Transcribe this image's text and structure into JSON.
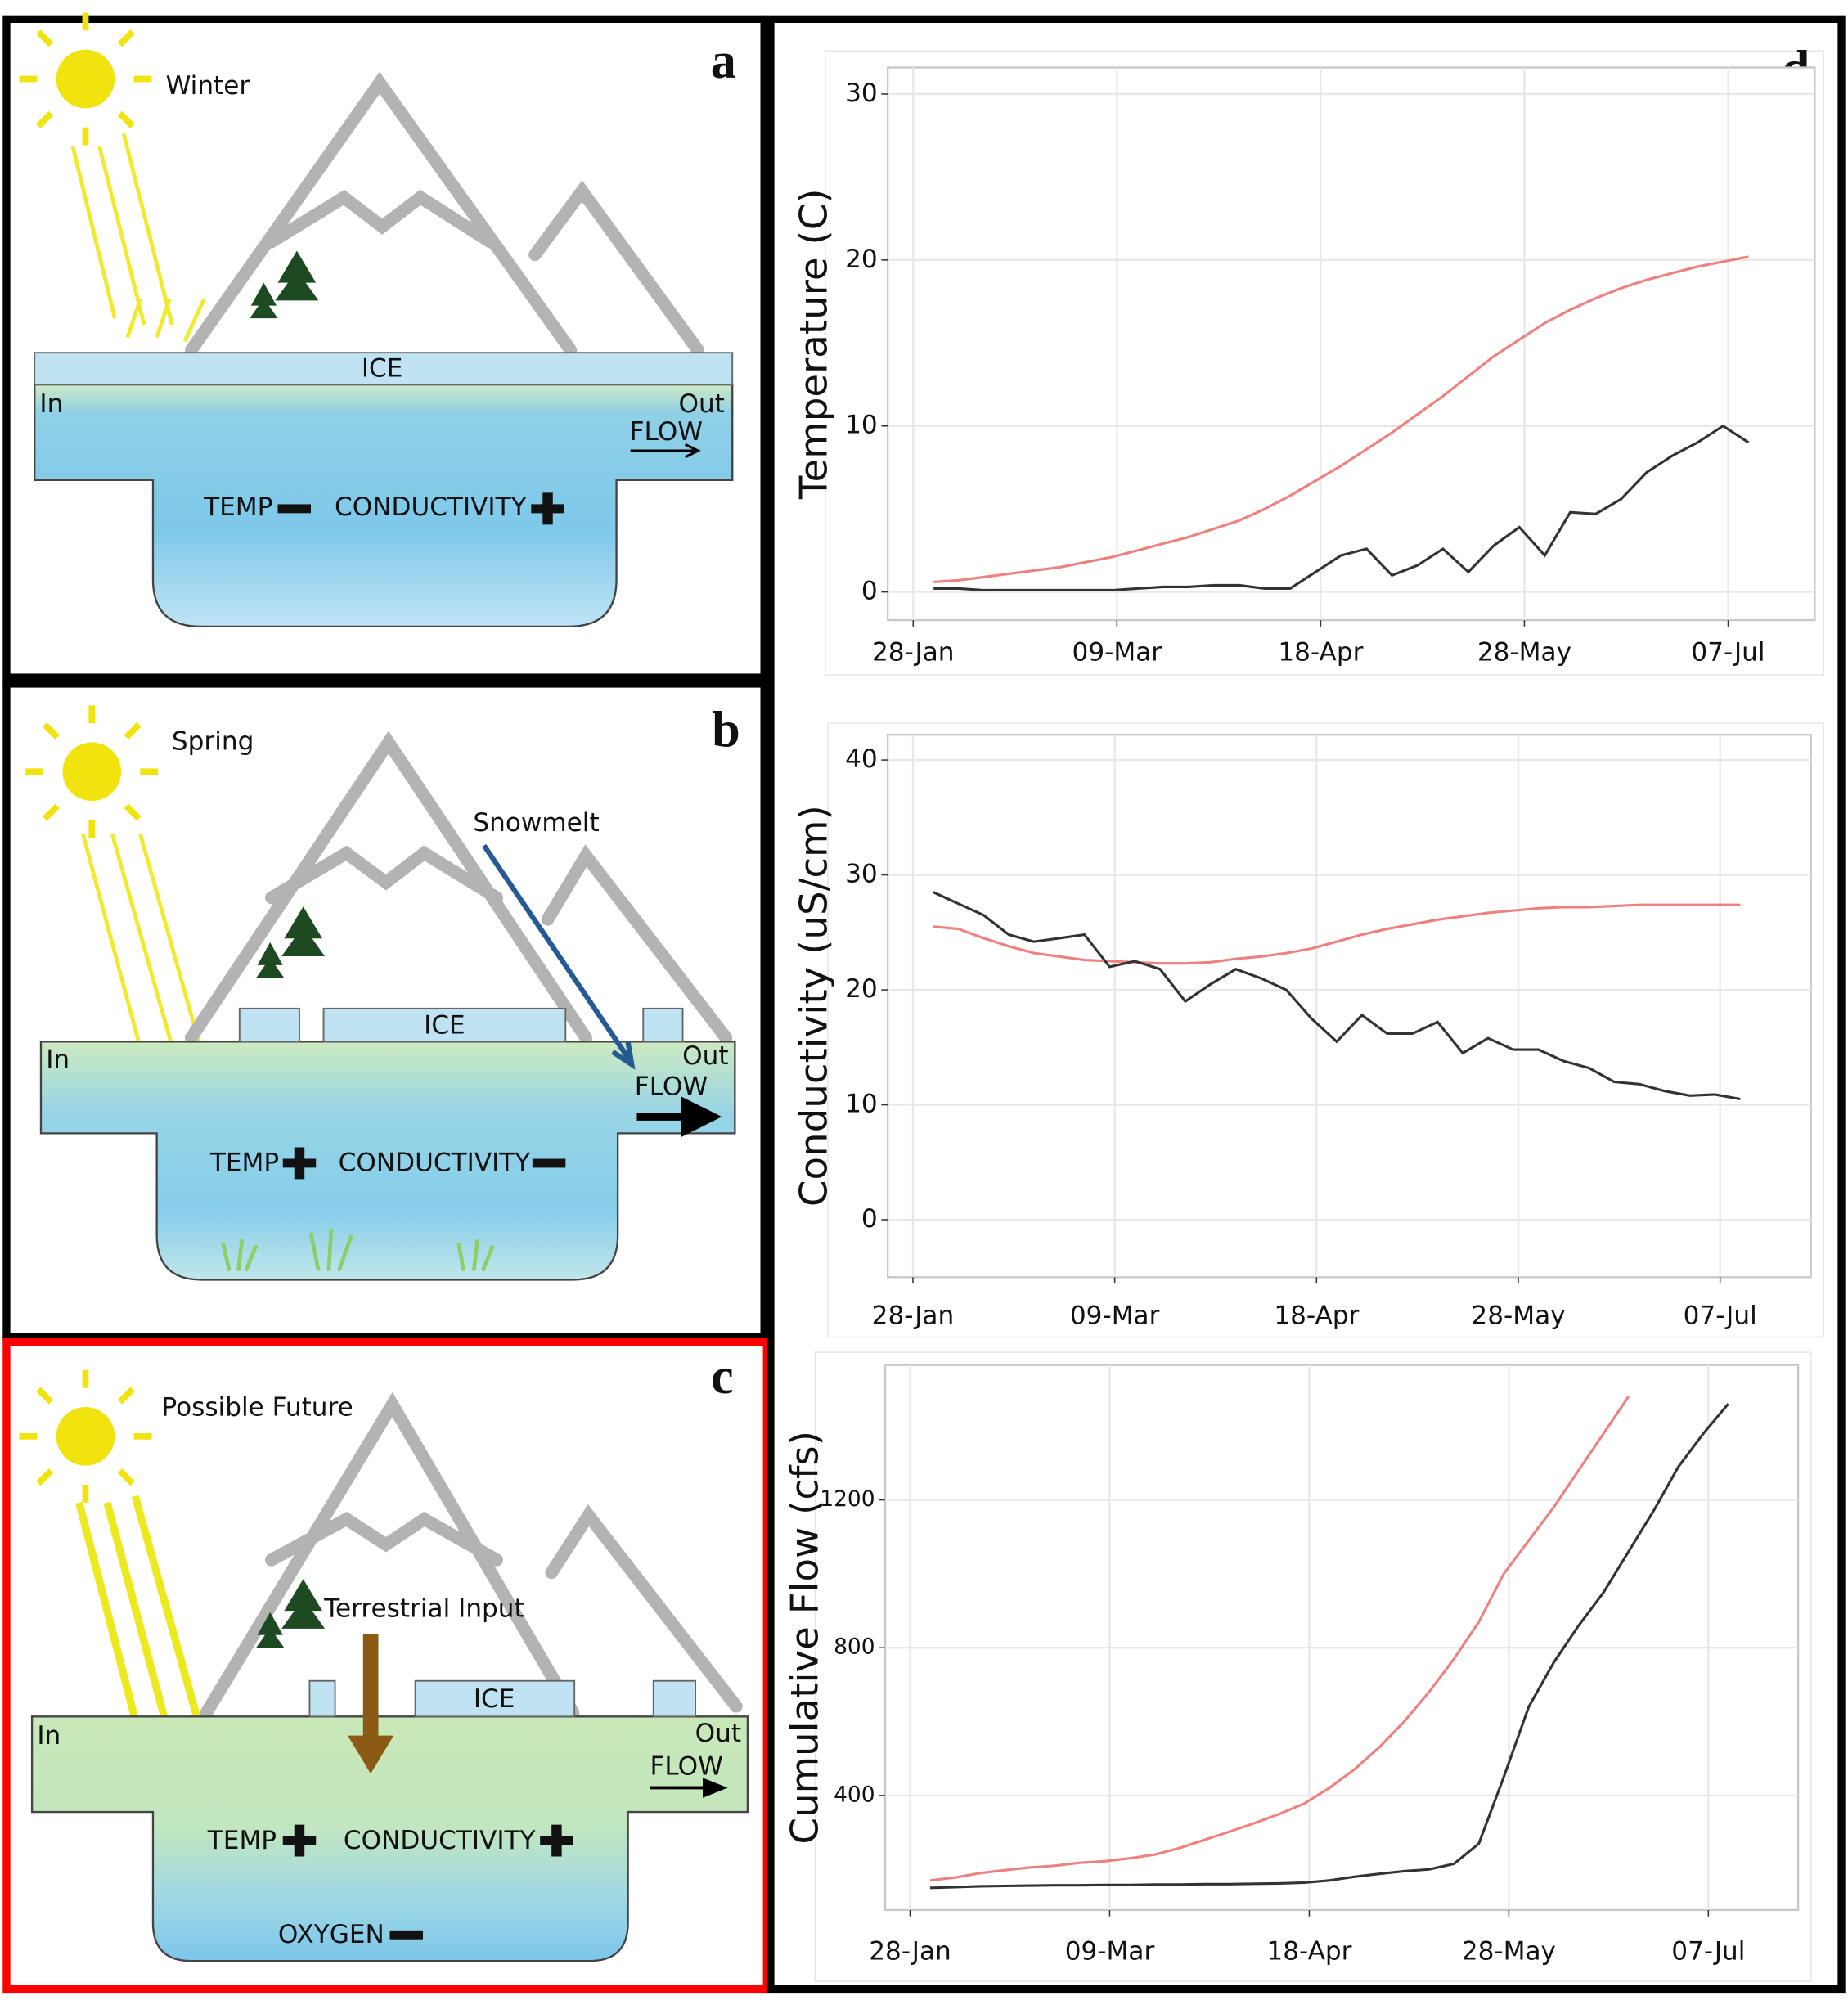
{
  "panels": [
    {
      "label": "a",
      "season": "Winter",
      "ice": "ICE",
      "in": "In",
      "out": "Out",
      "flow": "FLOW",
      "temp": "TEMP",
      "conductivity": "CONDUCTIVITY"
    },
    {
      "label": "b",
      "season": "Spring",
      "snowmelt": "Snowmelt",
      "ice": "ICE",
      "in": "In",
      "out": "Out",
      "flow": "FLOW",
      "temp": "TEMP",
      "conductivity": "CONDUCTIVITY"
    },
    {
      "label": "c",
      "season": "Possible Future",
      "input": "Terrestrial Input",
      "ice": "ICE",
      "in": "In",
      "out": "Out",
      "flow": "FLOW",
      "temp": "TEMP",
      "conductivity": "CONDUCTIVITY",
      "oxygen": "OXYGEN"
    }
  ],
  "chart_panel_label": "d",
  "chart_data": [
    {
      "type": "line",
      "y_label": "Temperature (C)",
      "x": [
        "01-Feb",
        "06-Feb",
        "11-Feb",
        "16-Feb",
        "21-Feb",
        "26-Feb",
        "03-Mar",
        "08-Mar",
        "13-Mar",
        "18-Mar",
        "23-Mar",
        "28-Mar",
        "02-Apr",
        "07-Apr",
        "12-Apr",
        "17-Apr",
        "22-Apr",
        "27-Apr",
        "02-May",
        "07-May",
        "12-May",
        "17-May",
        "22-May",
        "27-May",
        "01-Jun",
        "06-Jun",
        "11-Jun",
        "16-Jun",
        "21-Jun",
        "26-Jun",
        "01-Jul",
        "06-Jul",
        "11-Jul"
      ],
      "series": [
        {
          "color": "#ef8080",
          "values": [
            0.6,
            0.7,
            0.9,
            1.1,
            1.3,
            1.5,
            1.8,
            2.1,
            2.5,
            2.9,
            3.3,
            3.8,
            4.3,
            5.0,
            5.8,
            6.7,
            7.6,
            8.6,
            9.6,
            10.7,
            11.8,
            13.0,
            14.2,
            15.2,
            16.2,
            17.0,
            17.7,
            18.3,
            18.8,
            19.2,
            19.6,
            19.9,
            20.2
          ]
        },
        {
          "color": "#333333",
          "values": [
            0.2,
            0.2,
            0.1,
            0.1,
            0.1,
            0.1,
            0.1,
            0.1,
            0.2,
            0.3,
            0.3,
            0.4,
            0.4,
            0.2,
            0.2,
            1.2,
            2.2,
            2.6,
            1.0,
            1.6,
            2.6,
            1.2,
            2.8,
            3.9,
            2.2,
            4.8,
            4.7,
            5.6,
            7.2,
            8.2,
            9.0,
            10.0,
            9.0
          ]
        }
      ],
      "xlim": [
        "23-Jan",
        "24-Jul"
      ],
      "xticks": [
        "28-Jan",
        "09-Mar",
        "18-Apr",
        "28-May",
        "07-Jul"
      ],
      "ylim": [
        -1.7,
        31.6
      ],
      "yticks": [
        0,
        10,
        20,
        30
      ],
      "grid": true
    },
    {
      "type": "line",
      "y_label": "Conductivity (uS/cm)",
      "x": [
        "01-Feb",
        "06-Feb",
        "11-Feb",
        "16-Feb",
        "21-Feb",
        "26-Feb",
        "03-Mar",
        "08-Mar",
        "13-Mar",
        "18-Mar",
        "23-Mar",
        "28-Mar",
        "02-Apr",
        "07-Apr",
        "12-Apr",
        "17-Apr",
        "22-Apr",
        "27-Apr",
        "02-May",
        "07-May",
        "12-May",
        "17-May",
        "22-May",
        "27-May",
        "01-Jun",
        "06-Jun",
        "11-Jun",
        "16-Jun",
        "21-Jun",
        "26-Jun",
        "01-Jul",
        "06-Jul",
        "11-Jul"
      ],
      "series": [
        {
          "color": "#ef8080",
          "values": [
            25.5,
            25.3,
            24.5,
            23.8,
            23.2,
            22.9,
            22.6,
            22.5,
            22.4,
            22.3,
            22.3,
            22.4,
            22.7,
            22.9,
            23.2,
            23.6,
            24.2,
            24.8,
            25.3,
            25.7,
            26.1,
            26.4,
            26.7,
            26.9,
            27.1,
            27.2,
            27.2,
            27.3,
            27.4,
            27.4,
            27.4,
            27.4,
            27.4
          ]
        },
        {
          "color": "#333333",
          "values": [
            28.5,
            27.5,
            26.5,
            24.8,
            24.2,
            24.5,
            24.8,
            22.0,
            22.5,
            21.8,
            19.0,
            20.5,
            21.8,
            21.0,
            20.0,
            17.5,
            15.5,
            17.8,
            16.2,
            16.2,
            17.2,
            14.5,
            15.8,
            14.8,
            14.8,
            13.8,
            13.2,
            12.0,
            11.8,
            11.2,
            10.8,
            10.9,
            10.5
          ]
        }
      ],
      "xlim": [
        "23-Jan",
        "25-Jul"
      ],
      "xticks": [
        "28-Jan",
        "09-Mar",
        "18-Apr",
        "28-May",
        "07-Jul"
      ],
      "ylim": [
        -5,
        42.2
      ],
      "yticks": [
        0,
        10,
        20,
        30,
        40
      ],
      "grid": true
    },
    {
      "type": "line",
      "y_label": "Cumulative Flow (cfs)",
      "x": [
        "01-Feb",
        "06-Feb",
        "11-Feb",
        "16-Feb",
        "21-Feb",
        "26-Feb",
        "03-Mar",
        "08-Mar",
        "13-Mar",
        "18-Mar",
        "23-Mar",
        "28-Mar",
        "02-Apr",
        "07-Apr",
        "12-Apr",
        "17-Apr",
        "22-Apr",
        "27-Apr",
        "02-May",
        "07-May",
        "12-May",
        "17-May",
        "22-May",
        "27-May",
        "01-Jun",
        "06-Jun",
        "11-Jun",
        "16-Jun",
        "21-Jun",
        "26-Jun",
        "01-Jul",
        "06-Jul",
        "11-Jul"
      ],
      "series": [
        {
          "color": "#ef8080",
          "values": [
            170,
            178,
            190,
            198,
            205,
            210,
            218,
            222,
            230,
            240,
            258,
            280,
            302,
            325,
            350,
            378,
            420,
            470,
            530,
            600,
            680,
            770,
            870,
            1000,
            1090,
            1180,
            1280,
            1380,
            1480,
            null,
            null,
            null,
            null
          ]
        },
        {
          "color": "#333333",
          "values": [
            150,
            152,
            154,
            155,
            156,
            157,
            157,
            158,
            158,
            159,
            159,
            160,
            160,
            161,
            162,
            164,
            170,
            180,
            188,
            195,
            200,
            215,
            270,
            450,
            640,
            760,
            860,
            950,
            1060,
            1170,
            1290,
            1380,
            1460
          ]
        }
      ],
      "xlim": [
        "23-Jan",
        "25-Jul"
      ],
      "xticks": [
        "28-Jan",
        "09-Mar",
        "18-Apr",
        "28-May",
        "07-Jul"
      ],
      "ylim": [
        90,
        1565
      ],
      "yticks": [
        400,
        800,
        1200
      ],
      "grid": true
    }
  ]
}
